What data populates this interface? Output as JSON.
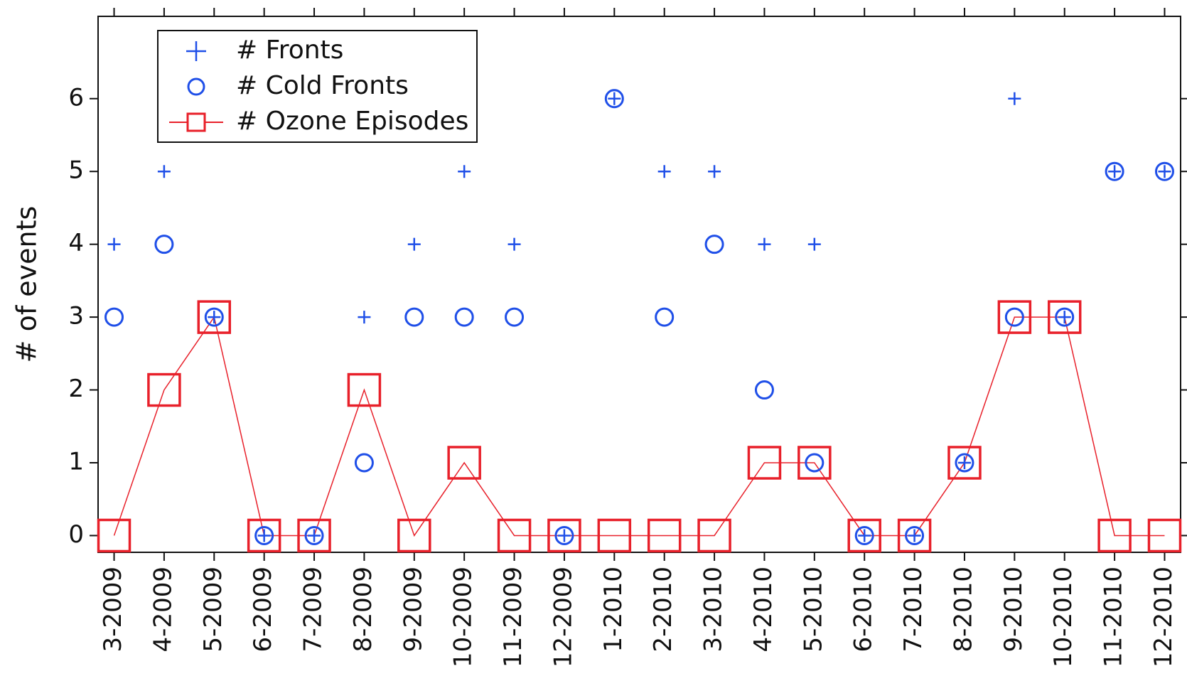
{
  "chart_data": {
    "type": "line",
    "y_label": "# of events",
    "categories": [
      "3-2009",
      "4-2009",
      "5-2009",
      "6-2009",
      "7-2009",
      "8-2009",
      "9-2009",
      "10-2009",
      "11-2009",
      "12-2009",
      "1-2010",
      "2-2010",
      "3-2010",
      "4-2010",
      "5-2010",
      "6-2010",
      "7-2010",
      "8-2010",
      "9-2010",
      "10-2010",
      "11-2010",
      "12-2010"
    ],
    "series": [
      {
        "name": "# Fronts",
        "color": "#1f4fe8",
        "marker": "plus",
        "values": [
          4,
          5,
          3,
          0,
          0,
          3,
          4,
          5,
          4,
          0,
          6,
          5,
          5,
          4,
          4,
          0,
          0,
          1,
          6,
          3,
          5,
          5
        ]
      },
      {
        "name": "# Cold Fronts",
        "color": "#1f4fe8",
        "marker": "circle",
        "values": [
          3,
          4,
          3,
          0,
          0,
          1,
          3,
          3,
          3,
          0,
          6,
          3,
          4,
          2,
          1,
          0,
          0,
          1,
          3,
          3,
          5,
          5
        ]
      },
      {
        "name": "# Ozone Episodes",
        "color": "#e8202a",
        "marker": "square-line",
        "values": [
          0,
          2,
          3,
          0,
          0,
          2,
          0,
          1,
          0,
          0,
          0,
          0,
          0,
          1,
          1,
          0,
          0,
          1,
          3,
          3,
          0,
          0
        ]
      }
    ],
    "ylim": [
      -0.23,
      7.13
    ],
    "yticks": [
      0,
      1,
      2,
      3,
      4,
      5,
      6
    ],
    "grid": false,
    "legend": "upper left"
  }
}
